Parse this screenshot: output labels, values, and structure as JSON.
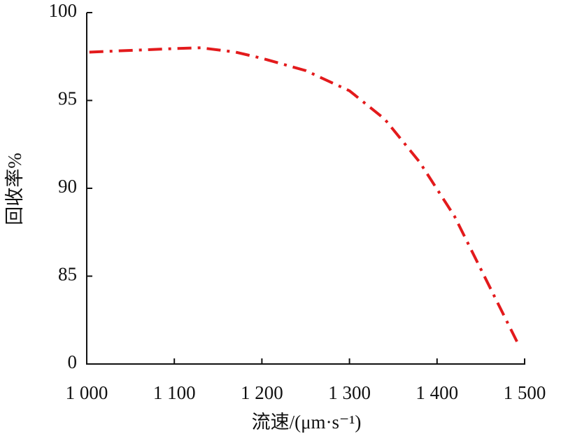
{
  "chart_data": {
    "type": "line",
    "xlabel": "流速/(μm·s⁻¹)",
    "ylabel": "回收率%",
    "xlim": [
      1000,
      1500
    ],
    "xticks": [
      {
        "value": 1000,
        "label": "1 000"
      },
      {
        "value": 1100,
        "label": "1 100"
      },
      {
        "value": 1200,
        "label": "1 200"
      },
      {
        "value": 1300,
        "label": "1 300"
      },
      {
        "value": 1400,
        "label": "1 400"
      },
      {
        "value": 1500,
        "label": "1 500"
      }
    ],
    "ylim": [
      80,
      100
    ],
    "yticks": [
      {
        "value": 80,
        "label": "0"
      },
      85,
      90,
      95,
      100
    ],
    "grid": false,
    "series": [
      {
        "color": "#e31a1c",
        "x": [
          1003,
          1050,
          1100,
          1130,
          1170,
          1200,
          1250,
          1300,
          1340,
          1380,
          1420,
          1460,
          1492
        ],
        "values": [
          97.75,
          97.85,
          97.95,
          98.0,
          97.75,
          97.4,
          96.7,
          95.55,
          93.95,
          91.5,
          88.4,
          84.4,
          81.2
        ]
      }
    ]
  }
}
